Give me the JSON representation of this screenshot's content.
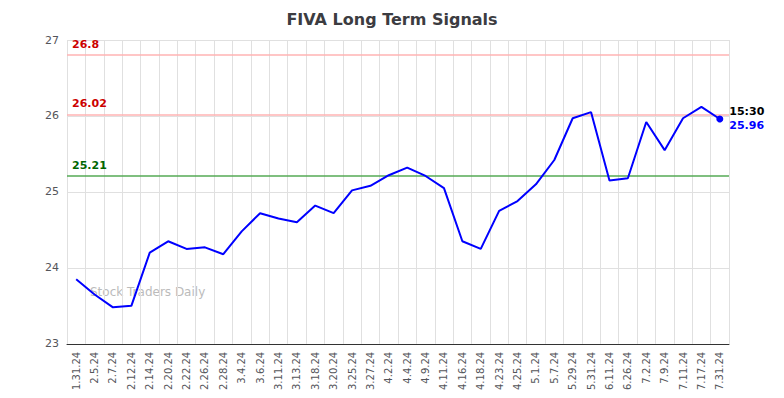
{
  "chart_data": {
    "type": "line",
    "title": "FIVA Long Term Signals",
    "categories": [
      "1.31.24",
      "2.5.24",
      "2.7.24",
      "2.12.24",
      "2.14.24",
      "2.20.24",
      "2.22.24",
      "2.26.24",
      "2.28.24",
      "3.4.24",
      "3.6.24",
      "3.11.24",
      "3.13.24",
      "3.18.24",
      "3.20.24",
      "3.25.24",
      "3.27.24",
      "4.2.24",
      "4.4.24",
      "4.9.24",
      "4.11.24",
      "4.16.24",
      "4.18.24",
      "4.23.24",
      "4.25.24",
      "5.1.24",
      "5.7.24",
      "5.29.24",
      "5.31.24",
      "6.11.24",
      "6.26.24",
      "7.2.24",
      "7.9.24",
      "7.11.24",
      "7.17.24",
      "7.31.24"
    ],
    "values": [
      23.85,
      23.65,
      23.48,
      23.5,
      24.2,
      24.35,
      24.25,
      24.27,
      24.18,
      24.48,
      24.72,
      24.65,
      24.6,
      24.82,
      24.72,
      25.02,
      25.08,
      25.22,
      25.32,
      25.21,
      25.05,
      24.35,
      24.25,
      24.75,
      24.88,
      25.1,
      25.42,
      25.97,
      26.05,
      25.15,
      25.18,
      25.92,
      25.55,
      25.97,
      26.12,
      25.96
    ],
    "color": "blue",
    "ylim": [
      23,
      27
    ],
    "yticks": [
      23,
      24,
      25,
      26,
      27
    ],
    "grid": true,
    "hlines": [
      {
        "value": 26.8,
        "label": "26.8",
        "color": "#ffb3b3",
        "label_color": "#cc0000"
      },
      {
        "value": 26.02,
        "label": "26.02",
        "color": "#ffb3b3",
        "label_color": "#cc0000"
      },
      {
        "value": 25.21,
        "label": "25.21",
        "color": "#55aa55",
        "label_color": "#006600"
      }
    ],
    "annotations": [
      {
        "text": "15:30",
        "color": "black"
      },
      {
        "text": "25.96",
        "color": "blue"
      }
    ],
    "watermark": "Stock Traders Daily",
    "watermark_color": "#bbbbbb"
  }
}
